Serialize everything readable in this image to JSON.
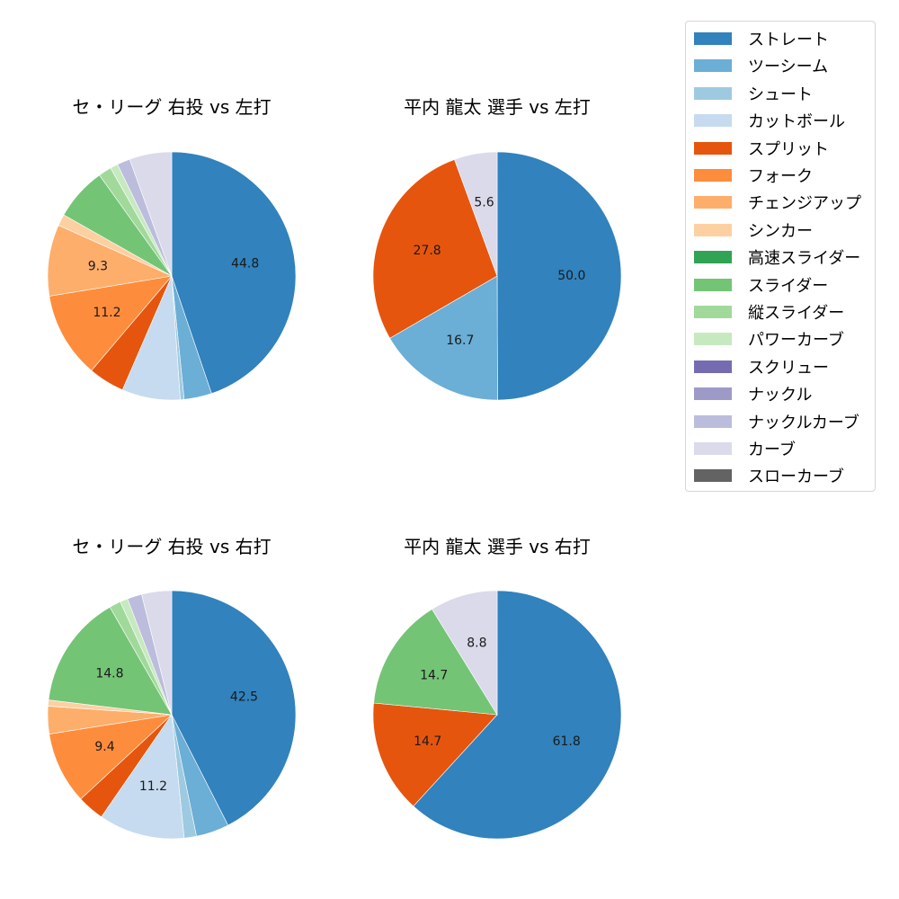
{
  "legend": {
    "items": [
      {
        "label": "ストレート",
        "color": "#3182bd"
      },
      {
        "label": "ツーシーム",
        "color": "#6baed6"
      },
      {
        "label": "シュート",
        "color": "#9ecae1"
      },
      {
        "label": "カットボール",
        "color": "#c6dbef"
      },
      {
        "label": "スプリット",
        "color": "#e6550d"
      },
      {
        "label": "フォーク",
        "color": "#fd8d3c"
      },
      {
        "label": "チェンジアップ",
        "color": "#fdae6b"
      },
      {
        "label": "シンカー",
        "color": "#fdd0a2"
      },
      {
        "label": "高速スライダー",
        "color": "#31a354"
      },
      {
        "label": "スライダー",
        "color": "#74c476"
      },
      {
        "label": "縦スライダー",
        "color": "#a1d99b"
      },
      {
        "label": "パワーカーブ",
        "color": "#c7e9c0"
      },
      {
        "label": "スクリュー",
        "color": "#756bb1"
      },
      {
        "label": "ナックル",
        "color": "#9e9ac8"
      },
      {
        "label": "ナックルカーブ",
        "color": "#bcbddc"
      },
      {
        "label": "カーブ",
        "color": "#dadaeb"
      },
      {
        "label": "スローカーブ",
        "color": "#636363"
      }
    ]
  },
  "chart_data": [
    {
      "type": "pie",
      "title": "セ・リーグ 右投 vs 左打",
      "start_angle": 90,
      "direction": "clockwise",
      "slices": [
        {
          "label": "ストレート",
          "value": 44.8,
          "shown": true
        },
        {
          "label": "ツーシーム",
          "value": 3.6,
          "shown": false
        },
        {
          "label": "シュート",
          "value": 0.5,
          "shown": false
        },
        {
          "label": "カットボール",
          "value": 7.6,
          "shown": false
        },
        {
          "label": "スプリット",
          "value": 4.7,
          "shown": false
        },
        {
          "label": "フォーク",
          "value": 11.2,
          "shown": true
        },
        {
          "label": "チェンジアップ",
          "value": 9.3,
          "shown": true
        },
        {
          "label": "シンカー",
          "value": 1.5,
          "shown": false
        },
        {
          "label": "スライダー",
          "value": 6.9,
          "shown": false
        },
        {
          "label": "縦スライダー",
          "value": 1.7,
          "shown": false
        },
        {
          "label": "パワーカーブ",
          "value": 1.0,
          "shown": false
        },
        {
          "label": "ナックルカーブ",
          "value": 1.7,
          "shown": false
        },
        {
          "label": "カーブ",
          "value": 5.5,
          "shown": false
        }
      ]
    },
    {
      "type": "pie",
      "title": "平内 龍太 選手 vs 左打",
      "start_angle": 90,
      "direction": "clockwise",
      "slices": [
        {
          "label": "ストレート",
          "value": 50.0,
          "shown": true
        },
        {
          "label": "ツーシーム",
          "value": 16.7,
          "shown": true
        },
        {
          "label": "スプリット",
          "value": 27.8,
          "shown": true
        },
        {
          "label": "カーブ",
          "value": 5.6,
          "shown": true
        }
      ]
    },
    {
      "type": "pie",
      "title": "セ・リーグ 右投 vs 右打",
      "start_angle": 90,
      "direction": "clockwise",
      "slices": [
        {
          "label": "ストレート",
          "value": 42.5,
          "shown": true
        },
        {
          "label": "ツーシーム",
          "value": 4.3,
          "shown": false
        },
        {
          "label": "シュート",
          "value": 1.6,
          "shown": false
        },
        {
          "label": "カットボール",
          "value": 11.2,
          "shown": true
        },
        {
          "label": "スプリット",
          "value": 3.5,
          "shown": false
        },
        {
          "label": "フォーク",
          "value": 9.4,
          "shown": true
        },
        {
          "label": "チェンジアップ",
          "value": 3.6,
          "shown": false
        },
        {
          "label": "シンカー",
          "value": 0.8,
          "shown": false
        },
        {
          "label": "スライダー",
          "value": 14.8,
          "shown": true
        },
        {
          "label": "縦スライダー",
          "value": 1.5,
          "shown": false
        },
        {
          "label": "パワーカーブ",
          "value": 1.0,
          "shown": false
        },
        {
          "label": "ナックルカーブ",
          "value": 1.9,
          "shown": false
        },
        {
          "label": "カーブ",
          "value": 3.9,
          "shown": false
        }
      ]
    },
    {
      "type": "pie",
      "title": "平内 龍太 選手 vs 右打",
      "start_angle": 90,
      "direction": "clockwise",
      "slices": [
        {
          "label": "ストレート",
          "value": 61.8,
          "shown": true
        },
        {
          "label": "スプリット",
          "value": 14.7,
          "shown": true
        },
        {
          "label": "スライダー",
          "value": 14.7,
          "shown": true
        },
        {
          "label": "カーブ",
          "value": 8.8,
          "shown": true
        }
      ]
    }
  ]
}
